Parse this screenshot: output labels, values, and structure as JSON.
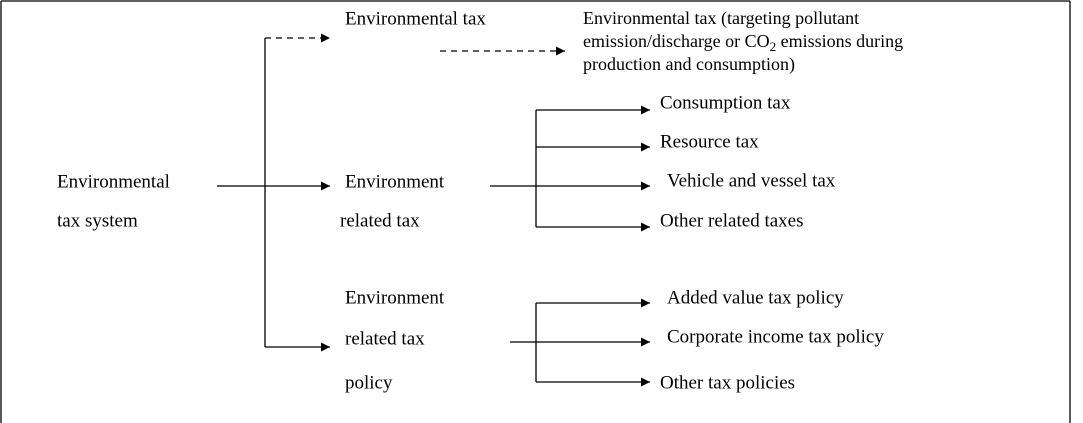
{
  "root": {
    "lines": [
      "Environmental",
      "tax system"
    ]
  },
  "environmental_tax": {
    "label": "Environmental tax",
    "description": [
      "Environmental tax (targeting pollutant",
      "emission/discharge or CO",
      "2",
      " emissions during",
      "production and consumption)"
    ]
  },
  "related_tax": {
    "lines": [
      "Environment",
      "related tax"
    ],
    "children": [
      "Consumption tax",
      "Resource tax",
      "Vehicle and vessel tax",
      "Other related taxes"
    ]
  },
  "related_policy": {
    "lines": [
      "Environment",
      "related tax",
      "policy"
    ],
    "children": [
      "Added value tax policy",
      "Corporate income tax policy",
      "Other tax policies"
    ]
  }
}
